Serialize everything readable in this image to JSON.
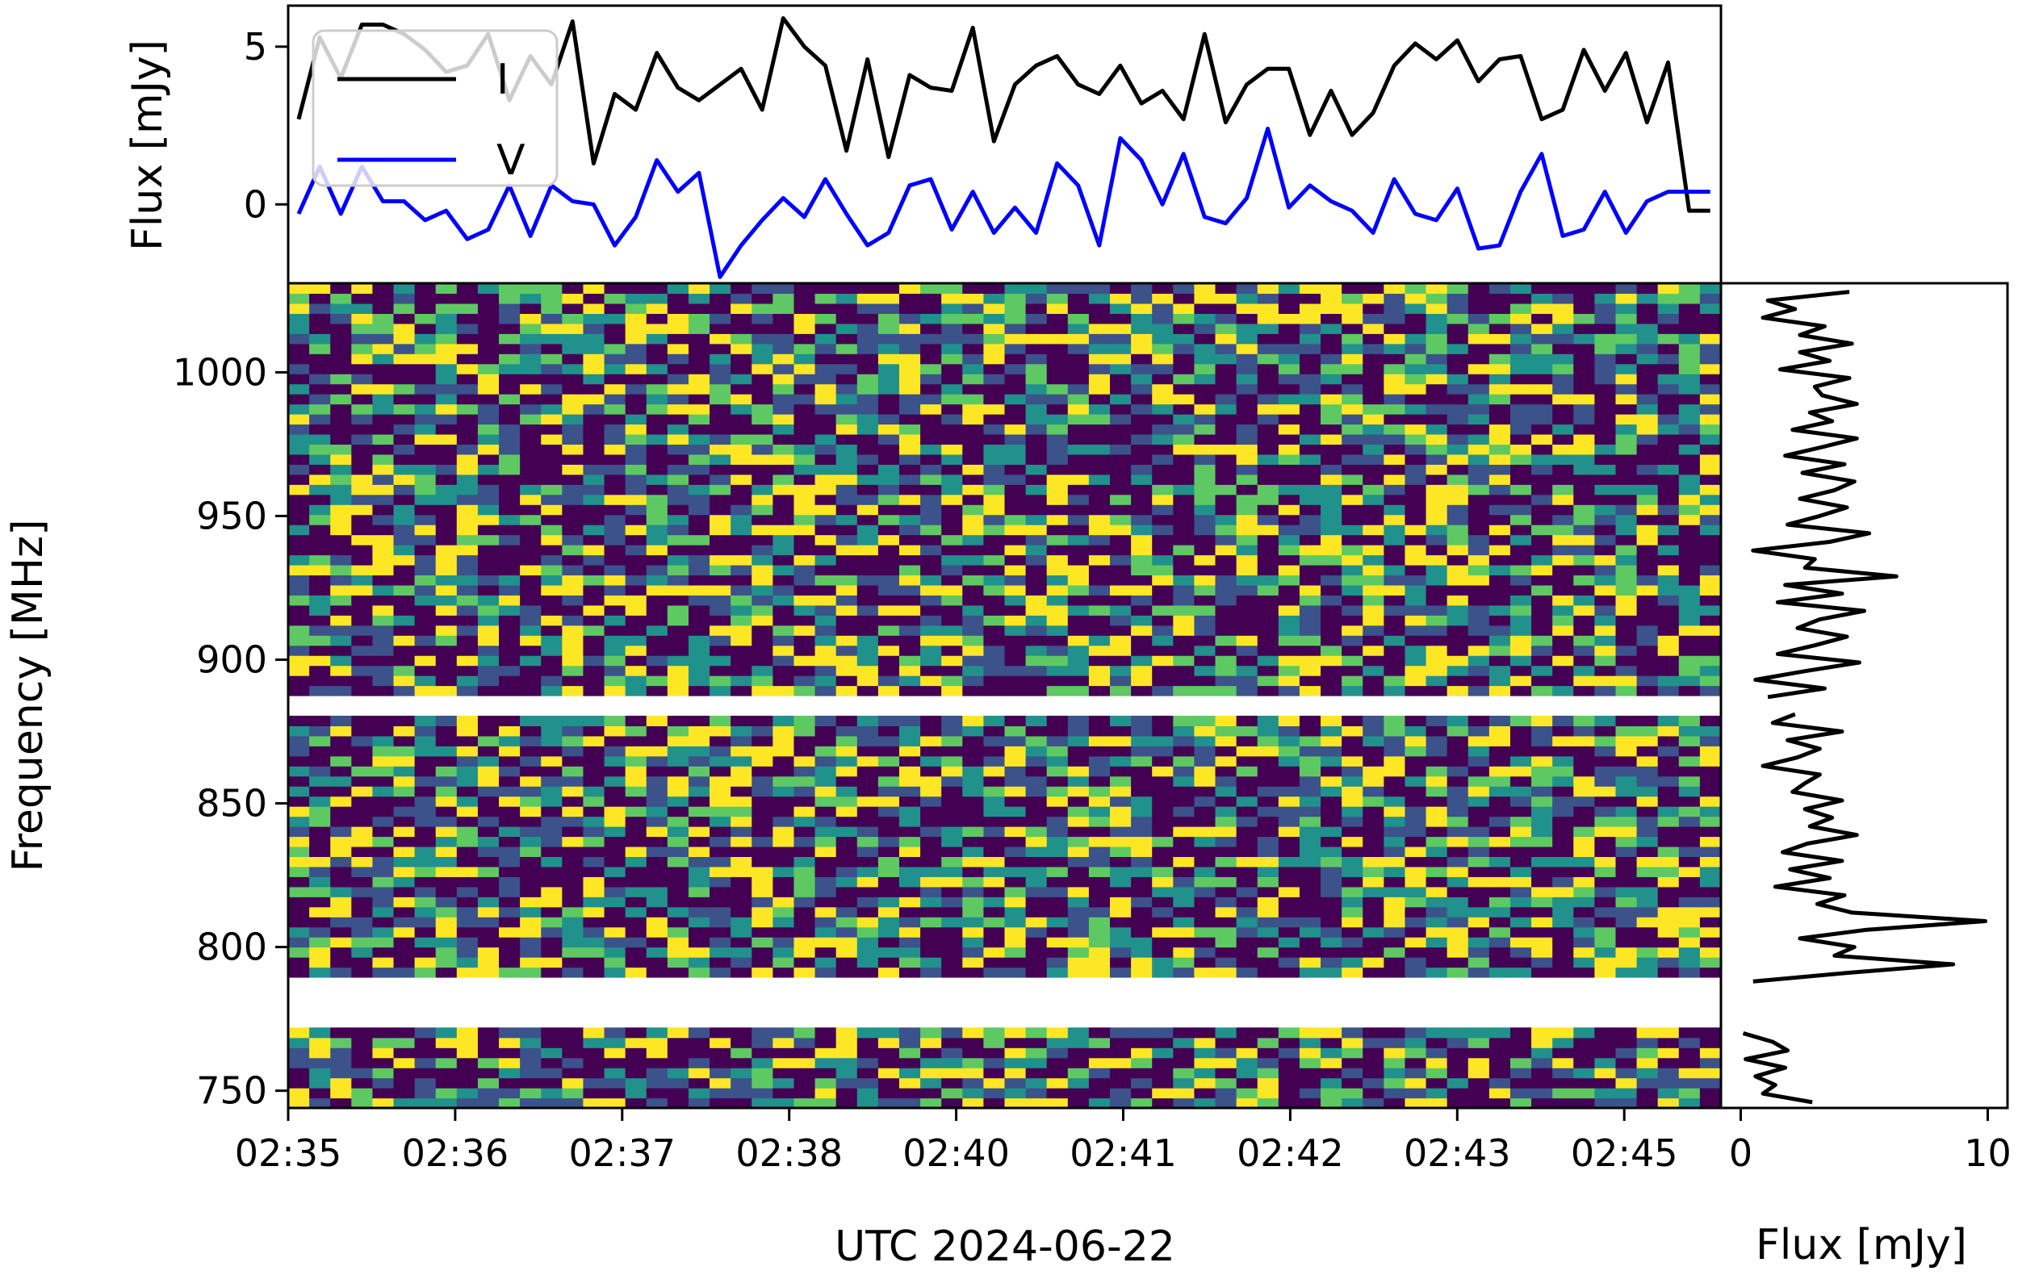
{
  "chart_data": [
    {
      "panel": "top",
      "type": "line",
      "xlabel": "",
      "ylabel": "Flux [mJy]",
      "ylim": [
        -2.5,
        6.3
      ],
      "yticks": [
        0,
        5
      ],
      "grid": false,
      "legend": {
        "placement": "top-left",
        "entries": [
          "I",
          "V"
        ]
      },
      "x": [
        0,
        1,
        2,
        3,
        4,
        5,
        6,
        7,
        8,
        9,
        10,
        11,
        12,
        13,
        14,
        15,
        16,
        17,
        18,
        19,
        20,
        21,
        22,
        23,
        24,
        25,
        26,
        27,
        28,
        29,
        30,
        31,
        32,
        33,
        34,
        35,
        36,
        37,
        38,
        39,
        40,
        41,
        42,
        43,
        44,
        45,
        46,
        47,
        48,
        49,
        50,
        51,
        52,
        53,
        54,
        55,
        56,
        57,
        58,
        59,
        60,
        61,
        62,
        63,
        64,
        65,
        66,
        67
      ],
      "series": [
        {
          "name": "I",
          "color": "#000000",
          "values": [
            2.7,
            5.3,
            4.0,
            5.7,
            5.7,
            5.4,
            4.9,
            4.2,
            4.4,
            5.4,
            3.3,
            4.7,
            3.8,
            5.8,
            1.3,
            3.5,
            3.0,
            4.8,
            3.7,
            3.3,
            3.8,
            4.3,
            3.0,
            5.9,
            5.0,
            4.4,
            1.7,
            4.6,
            1.5,
            4.1,
            3.7,
            3.6,
            5.6,
            2.0,
            3.8,
            4.4,
            4.7,
            3.8,
            3.5,
            4.4,
            3.2,
            3.6,
            2.7,
            5.4,
            2.6,
            3.8,
            4.3,
            4.3,
            2.2,
            3.6,
            2.2,
            2.9,
            4.4,
            5.1,
            4.6,
            5.2,
            3.9,
            4.6,
            4.7,
            2.7,
            3.0,
            4.9,
            3.6,
            4.8,
            2.6,
            4.5,
            -0.2,
            -0.2
          ]
        },
        {
          "name": "V",
          "color": "#0000ff",
          "values": [
            -0.3,
            1.2,
            -0.3,
            1.2,
            0.1,
            0.1,
            -0.5,
            -0.2,
            -1.1,
            -0.8,
            0.6,
            -1.0,
            0.6,
            0.1,
            0.0,
            -1.3,
            -0.4,
            1.4,
            0.4,
            1.0,
            -2.3,
            -1.3,
            -0.5,
            0.2,
            -0.4,
            0.8,
            -0.3,
            -1.3,
            -0.9,
            0.6,
            0.8,
            -0.8,
            0.4,
            -0.9,
            -0.1,
            -0.9,
            1.3,
            0.6,
            -1.3,
            2.1,
            1.4,
            0.0,
            1.6,
            -0.4,
            -0.6,
            0.2,
            2.4,
            -0.1,
            0.6,
            0.1,
            -0.2,
            -0.9,
            0.8,
            -0.3,
            -0.5,
            0.5,
            -1.4,
            -1.3,
            0.4,
            1.6,
            -1.0,
            -0.8,
            0.4,
            -0.9,
            0.1,
            0.4,
            0.4,
            0.4
          ]
        }
      ]
    },
    {
      "panel": "main",
      "type": "heatmap",
      "xlabel": "UTC 2024-06-22",
      "ylabel": "Frequency [MHz]",
      "x_tick_labels": [
        "02:35",
        "02:36",
        "02:37",
        "02:38",
        "02:40",
        "02:41",
        "02:42",
        "02:43",
        "02:45"
      ],
      "yticks": [
        750,
        800,
        850,
        900,
        950,
        1000
      ],
      "ylim": [
        744,
        1031
      ],
      "masked_bands_mhz": [
        [
          882,
          887
        ],
        [
          772,
          787
        ]
      ],
      "colormap": [
        "#440154",
        "#3b528b",
        "#21918c",
        "#5ec962",
        "#fde725"
      ],
      "n_time_bins": 68,
      "freq_bin_mhz": 3.5
    },
    {
      "panel": "right",
      "type": "line",
      "xlabel": "Flux [mJy]",
      "ylabel": "",
      "xlim": [
        -0.8,
        10.8
      ],
      "xticks": [
        0,
        10
      ],
      "grid": false,
      "y_mhz": [
        1028,
        1025,
        1022,
        1019,
        1016,
        1013,
        1010,
        1007,
        1004,
        1001,
        998,
        995,
        992,
        989,
        986,
        983,
        980,
        977,
        974,
        971,
        968,
        965,
        962,
        959,
        956,
        953,
        950,
        947,
        944,
        941,
        938,
        935,
        932,
        929,
        926,
        923,
        920,
        917,
        914,
        911,
        908,
        905,
        902,
        899,
        896,
        893,
        890,
        887,
        881,
        878,
        875,
        872,
        869,
        866,
        863,
        860,
        857,
        854,
        851,
        848,
        845,
        842,
        839,
        836,
        833,
        830,
        827,
        824,
        821,
        818,
        815,
        812,
        809,
        806,
        803,
        800,
        797,
        794,
        791,
        788,
        770,
        767,
        764,
        761,
        758,
        755,
        752,
        749,
        746
      ],
      "values": [
        4.4,
        1.1,
        2.2,
        0.9,
        3.4,
        2.4,
        4.5,
        2.4,
        3.6,
        1.6,
        4.4,
        3.0,
        3.3,
        4.7,
        2.8,
        3.7,
        2.1,
        4.7,
        3.3,
        1.8,
        4.2,
        2.5,
        4.6,
        3.8,
        2.4,
        4.3,
        3.2,
        1.9,
        5.2,
        3.6,
        0.5,
        3.0,
        2.6,
        6.3,
        1.8,
        4.1,
        1.5,
        5.0,
        3.2,
        2.3,
        4.3,
        3.0,
        1.5,
        4.8,
        2.6,
        0.6,
        3.4,
        1.1,
        2.2,
        1.3,
        4.1,
        1.9,
        3.2,
        2.3,
        0.9,
        3.2,
        2.6,
        2.1,
        4.1,
        2.6,
        3.7,
        2.8,
        4.7,
        2.7,
        1.7,
        4.1,
        2.0,
        3.6,
        1.4,
        4.2,
        3.1,
        4.5,
        9.9,
        5.1,
        2.4,
        4.6,
        3.8,
        8.6,
        4.3,
        0.5,
        0.1,
        1.3,
        1.9,
        0.2,
        1.8,
        0.6,
        1.4,
        0.9,
        2.9
      ]
    }
  ]
}
